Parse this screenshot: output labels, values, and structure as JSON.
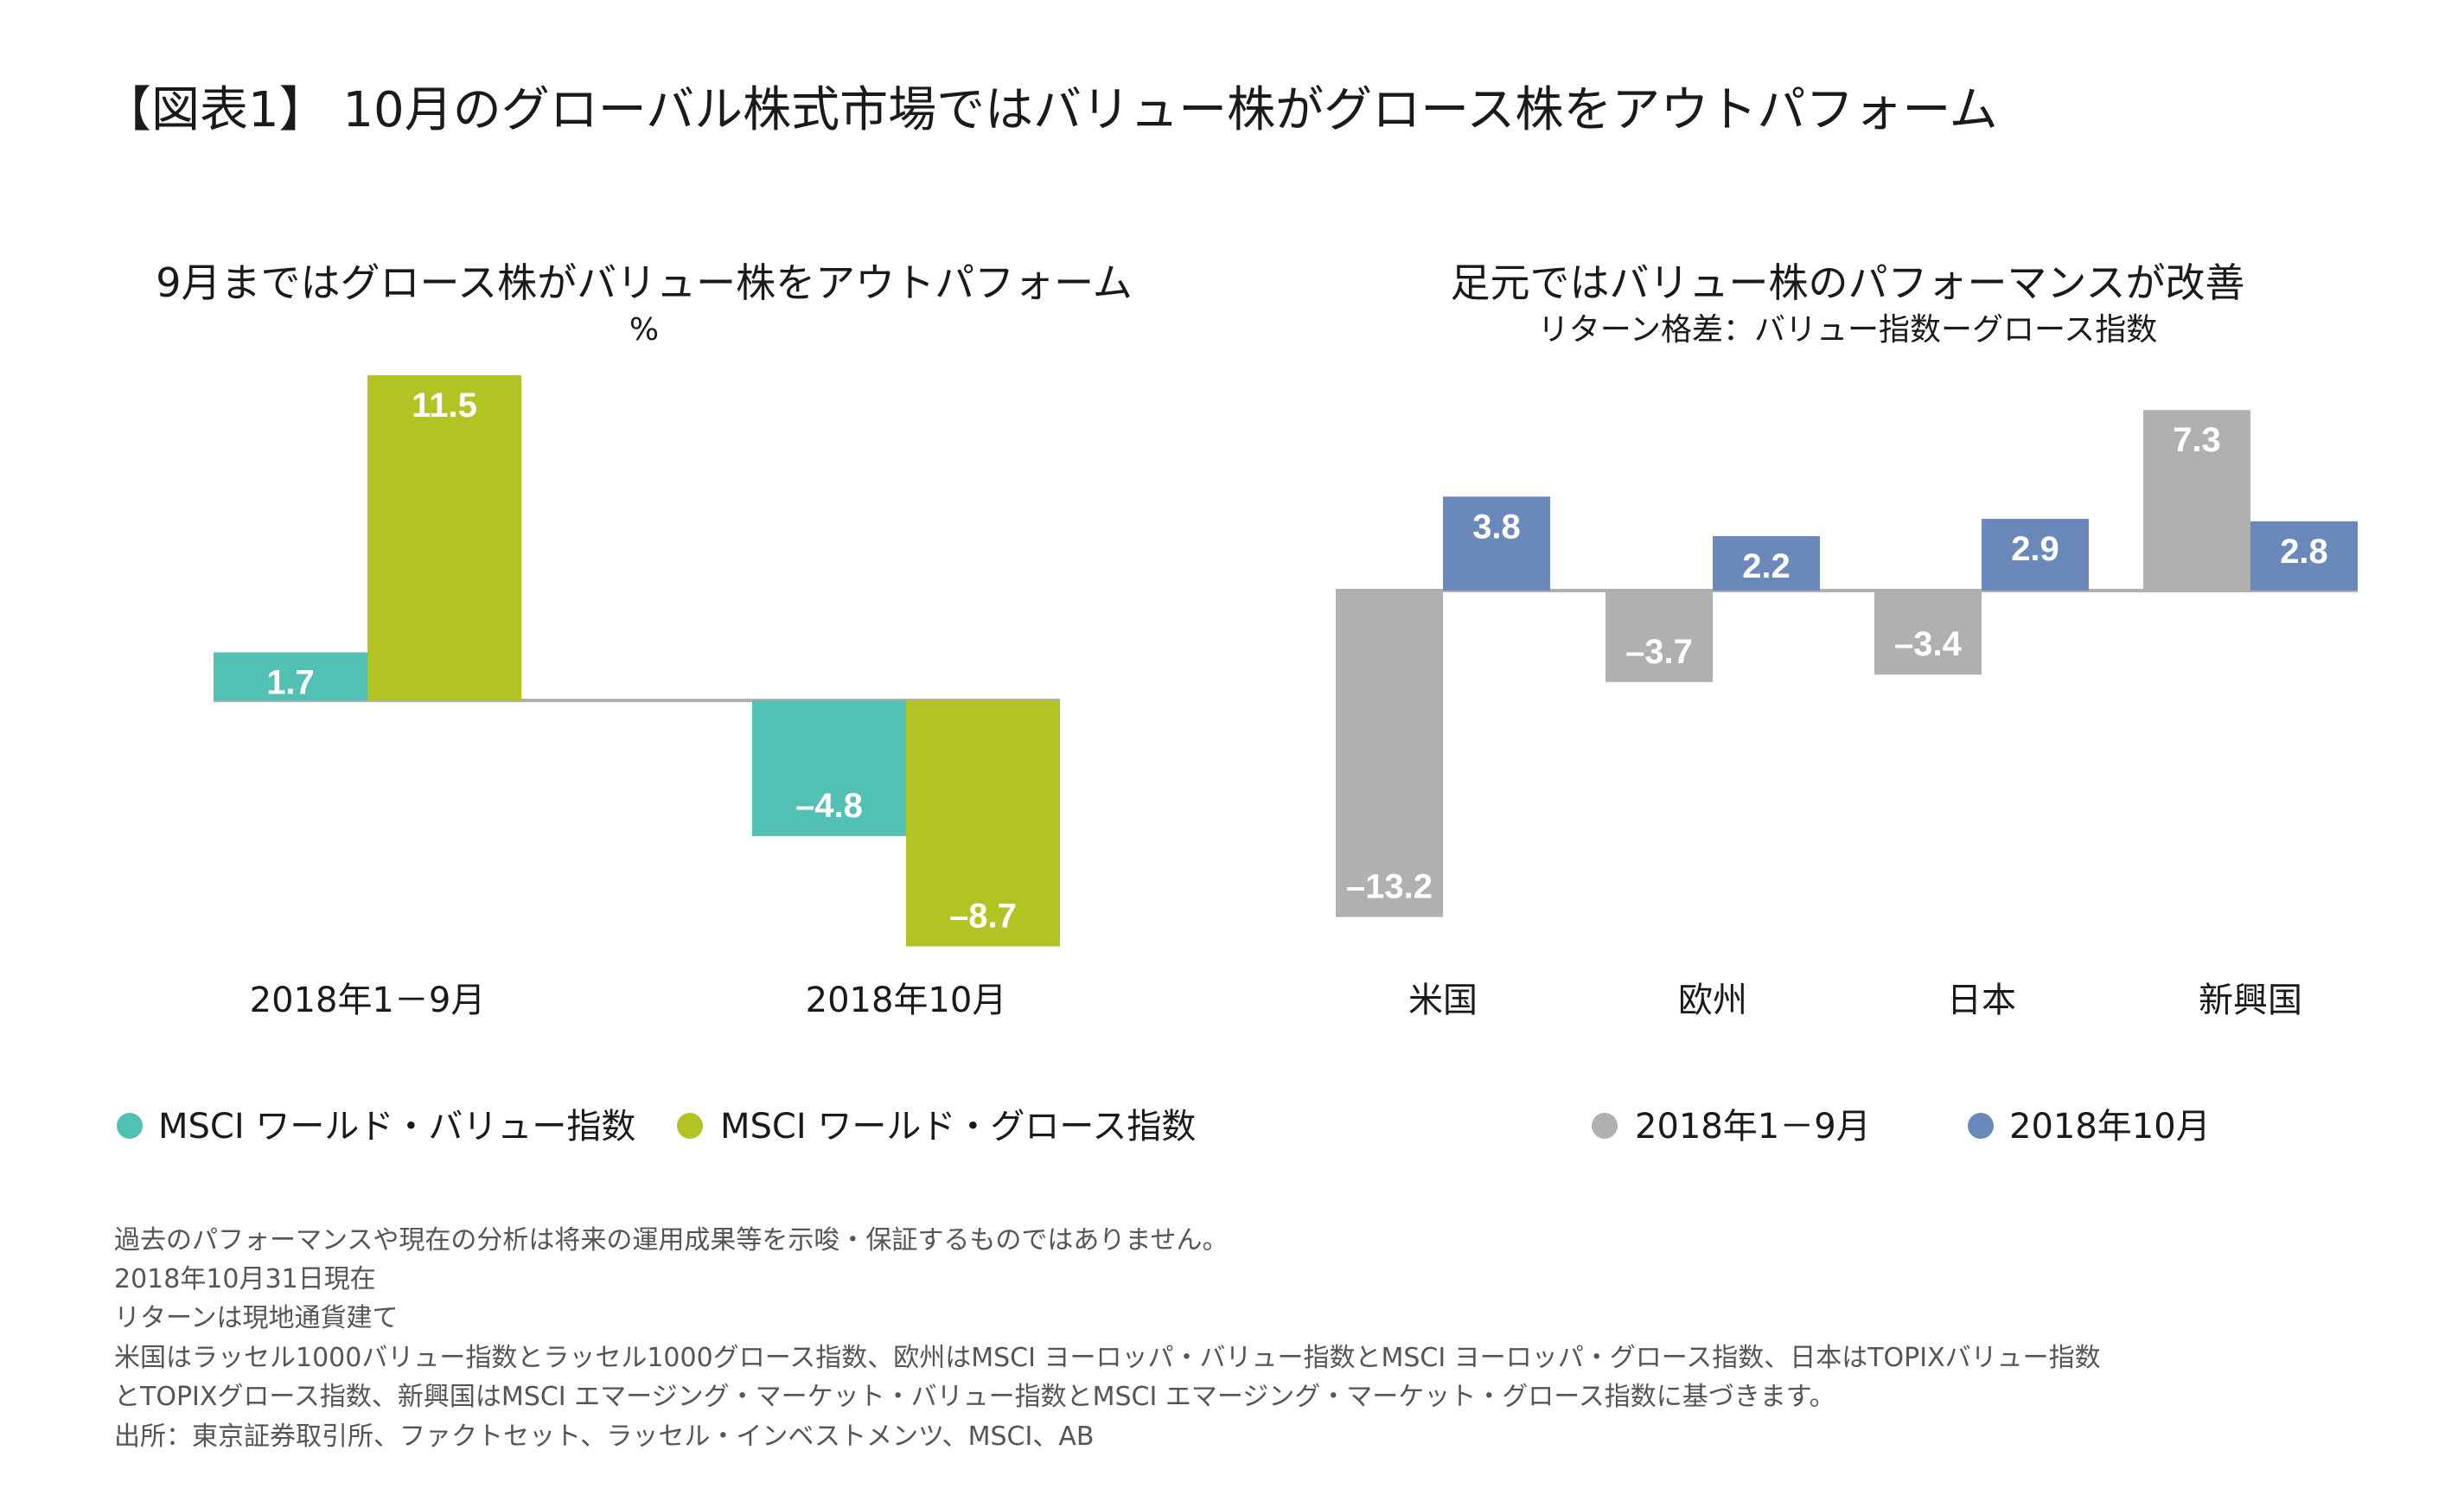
{
  "title": "【図表1】 10月のグローバル株式市場ではバリュー株がグロース株をアウトパフォーム",
  "colors": {
    "teal": "#52c0b2",
    "green": "#b2c424",
    "gray": "#b0b0b0",
    "blue": "#6a88ba",
    "axis": "#b0b0b0"
  },
  "chart_data": [
    {
      "type": "bar",
      "title": "9月まではグロース株がバリュー株をアウトパフォーム",
      "ylabel": "%",
      "categories": [
        "2018年1－9月",
        "2018年10月"
      ],
      "series": [
        {
          "name": "MSCI ワールド・バリュー指数",
          "color": "#52c0b2",
          "values": [
            1.7,
            -4.8
          ],
          "labels": [
            "1.7",
            "–4.8"
          ]
        },
        {
          "name": "MSCI ワールド・グロース指数",
          "color": "#b2c424",
          "values": [
            11.5,
            -8.7
          ],
          "labels": [
            "11.5",
            "–8.7"
          ]
        }
      ],
      "legend": "bottom"
    },
    {
      "type": "bar",
      "title": "足元ではバリュー株のパフォーマンスが改善",
      "subtitle": "リターン格差：バリュー指数ーグロース指数",
      "categories": [
        "米国",
        "欧州",
        "日本",
        "新興国"
      ],
      "series": [
        {
          "name": "2018年1－9月",
          "color": "#b0b0b0",
          "values": [
            -13.2,
            -3.7,
            -3.4,
            7.3
          ],
          "labels": [
            "–13.2",
            "–3.7",
            "–3.4",
            "7.3"
          ]
        },
        {
          "name": "2018年10月",
          "color": "#6a88ba",
          "values": [
            3.8,
            2.2,
            2.9,
            2.8
          ],
          "labels": [
            "3.8",
            "2.2",
            "2.9",
            "2.8"
          ]
        }
      ],
      "legend": "bottom"
    }
  ],
  "footnotes": [
    "過去のパフォーマンスや現在の分析は将来の運用成果等を示唆・保証するものではありません。",
    "2018年10月31日現在",
    "リターンは現地通貨建て",
    "米国はラッセル1000バリュー指数とラッセル1000グロース指数、欧州はMSCI ヨーロッパ・バリュー指数とMSCI ヨーロッパ・グロース指数、日本はTOPIXバリュー指数",
    "とTOPIXグロース指数、新興国はMSCI エマージング・マーケット・バリュー指数とMSCI エマージング・マーケット・グロース指数に基づきます。",
    "出所：東京証券取引所、ファクトセット、ラッセル・インベストメンツ、MSCI、AB"
  ]
}
